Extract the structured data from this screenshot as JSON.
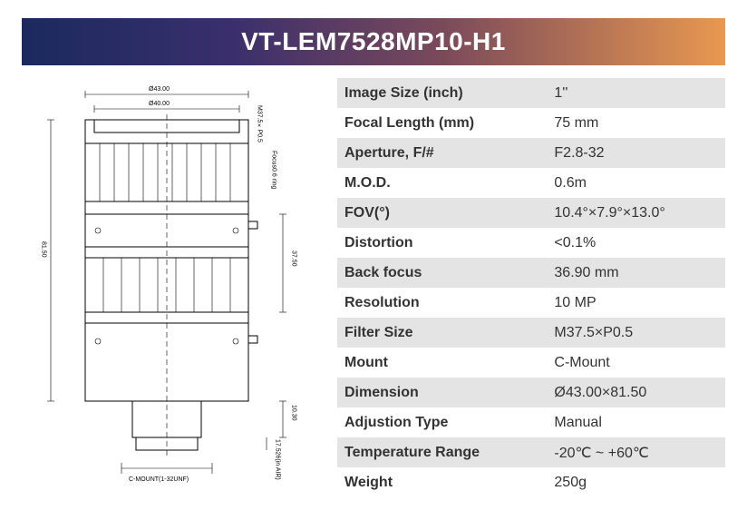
{
  "title": "VT-LEM7528MP10-H1",
  "title_bg_gradient": [
    "#1a2a5e",
    "#3a2f6c",
    "#7b4a5a",
    "#e89850"
  ],
  "title_text_color": "#ffffff",
  "title_fontsize": 28,
  "spec_fontsize": 16,
  "alt_row_bg": "#e4e4e4",
  "specs": [
    {
      "label": "Image Size (inch)",
      "value": "1''"
    },
    {
      "label": "Focal Length (mm)",
      "value": "75 mm"
    },
    {
      "label": "Aperture, F/#",
      "value": "F2.8-32"
    },
    {
      "label": "M.O.D.",
      "value": "0.6m"
    },
    {
      "label": "FOV(°)",
      "value": "10.4°×7.9°×13.0°"
    },
    {
      "label": "Distortion",
      "value": "<0.1%"
    },
    {
      "label": "Back focus",
      "value": "36.90 mm"
    },
    {
      "label": "Resolution",
      "value": "10 MP"
    },
    {
      "label": "Filter Size",
      "value": "M37.5×P0.5"
    },
    {
      "label": "Mount",
      "value": "C-Mount"
    },
    {
      "label": "Dimension",
      "value": "Ø43.00×81.50"
    },
    {
      "label": "Adjustion Type",
      "value": "Manual"
    },
    {
      "label": "Temperature Range",
      "value": "-20℃ ~  +60℃"
    },
    {
      "label": "Weight",
      "value": "250g"
    }
  ],
  "diagram": {
    "top_dim": "Ø43.00",
    "sub_dim": "Ø40.00",
    "left_height": "81.50",
    "right_upper": "37.50",
    "right_mid": "10.30",
    "right_thread": "17.526(in AIR)",
    "bottom_label": "C-MOUNT(1-32UNF)",
    "filter_note": "M37.5×P0.5",
    "ring_note": "Focus0.6 ring"
  }
}
